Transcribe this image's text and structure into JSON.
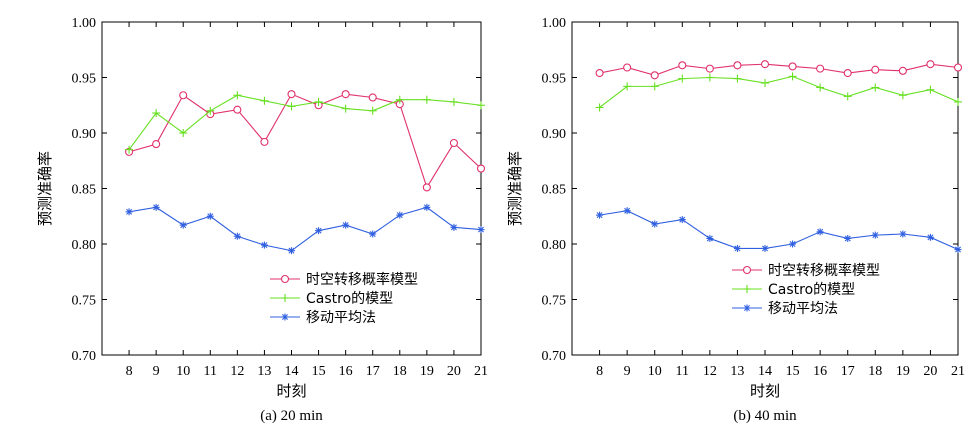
{
  "chart_data": [
    {
      "type": "line",
      "caption": "(a) 20 min",
      "xlabel": "时刻",
      "ylabel": "预测准确率",
      "xlim": [
        7,
        21
      ],
      "ylim": [
        0.7,
        1.0
      ],
      "yticks": [
        "0.70",
        "0.75",
        "0.80",
        "0.85",
        "0.90",
        "0.95",
        "1.00"
      ],
      "x": [
        8,
        9,
        10,
        11,
        12,
        13,
        14,
        15,
        16,
        17,
        18,
        19,
        20,
        21
      ],
      "legend_position": "lower-right",
      "series": [
        {
          "name": "时空转移概率模型",
          "color": "#e0306a",
          "marker": "circle",
          "values": [
            0.883,
            0.89,
            0.934,
            0.917,
            0.921,
            0.892,
            0.935,
            0.925,
            0.935,
            0.932,
            0.926,
            0.851,
            0.891,
            0.868
          ]
        },
        {
          "name": "Castro的模型",
          "color": "#66e020",
          "marker": "plus",
          "values": [
            0.885,
            0.918,
            0.9,
            0.92,
            0.934,
            0.929,
            0.924,
            0.928,
            0.922,
            0.92,
            0.93,
            0.93,
            0.928,
            0.925
          ]
        },
        {
          "name": "移动平均法",
          "color": "#3060e0",
          "marker": "star",
          "values": [
            0.829,
            0.833,
            0.817,
            0.825,
            0.807,
            0.799,
            0.794,
            0.812,
            0.817,
            0.809,
            0.826,
            0.833,
            0.815,
            0.813
          ]
        }
      ]
    },
    {
      "type": "line",
      "caption": "(b) 40 min",
      "xlabel": "时刻",
      "ylabel": "预测准确率",
      "xlim": [
        7,
        21
      ],
      "ylim": [
        0.7,
        1.0
      ],
      "yticks": [
        "0.70",
        "0.75",
        "0.80",
        "0.85",
        "0.90",
        "0.95",
        "1.00"
      ],
      "x": [
        8,
        9,
        10,
        11,
        12,
        13,
        14,
        15,
        16,
        17,
        18,
        19,
        20,
        21
      ],
      "legend_position": "lower-right",
      "series": [
        {
          "name": "时空转移概率模型",
          "color": "#e0306a",
          "marker": "circle",
          "values": [
            0.954,
            0.959,
            0.952,
            0.961,
            0.958,
            0.961,
            0.962,
            0.96,
            0.958,
            0.954,
            0.957,
            0.956,
            0.962,
            0.959
          ]
        },
        {
          "name": "Castro的模型",
          "color": "#66e020",
          "marker": "plus",
          "values": [
            0.923,
            0.942,
            0.942,
            0.949,
            0.95,
            0.949,
            0.945,
            0.951,
            0.941,
            0.933,
            0.941,
            0.934,
            0.939,
            0.928
          ]
        },
        {
          "name": "移动平均法",
          "color": "#3060e0",
          "marker": "star",
          "values": [
            0.826,
            0.83,
            0.818,
            0.822,
            0.805,
            0.796,
            0.796,
            0.8,
            0.811,
            0.805,
            0.808,
            0.809,
            0.806,
            0.795
          ]
        }
      ]
    }
  ]
}
